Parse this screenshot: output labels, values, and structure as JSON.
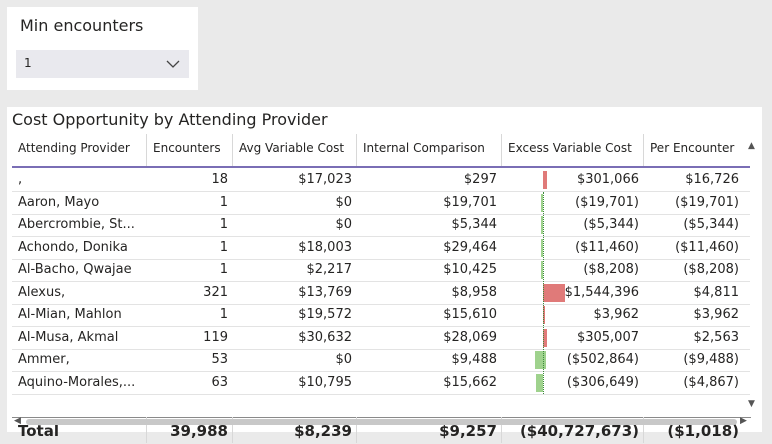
{
  "slicer": {
    "title": "Min encounters",
    "value": "1"
  },
  "visual": {
    "title": "Cost Opportunity by Attending Provider",
    "columns": [
      "Attending Provider",
      "Encounters",
      "Avg Variable Cost",
      "Internal Comparison",
      "Excess Variable Cost",
      "Per Encounter"
    ],
    "rows": [
      {
        "name": ",",
        "enc": "18",
        "avg": "$17,023",
        "internal": "$297",
        "excess": "$301,066",
        "per": "$16,726",
        "bar": 301066
      },
      {
        "name": "Aaron, Mayo",
        "enc": "1",
        "avg": "$0",
        "internal": "$19,701",
        "excess": "($19,701)",
        "per": "($19,701)",
        "bar": -19701
      },
      {
        "name": "Abercrombie, St...",
        "enc": "1",
        "avg": "$0",
        "internal": "$5,344",
        "excess": "($5,344)",
        "per": "($5,344)",
        "bar": -5344
      },
      {
        "name": "Achondo, Donika",
        "enc": "1",
        "avg": "$18,003",
        "internal": "$29,464",
        "excess": "($11,460)",
        "per": "($11,460)",
        "bar": -11460
      },
      {
        "name": "Al-Bacho, Qwajae",
        "enc": "1",
        "avg": "$2,217",
        "internal": "$10,425",
        "excess": "($8,208)",
        "per": "($8,208)",
        "bar": -8208
      },
      {
        "name": "Alexus,",
        "enc": "321",
        "avg": "$13,769",
        "internal": "$8,958",
        "excess": "$1,544,396",
        "per": "$4,811",
        "bar": 1544396
      },
      {
        "name": "Al-Mian, Mahlon",
        "enc": "1",
        "avg": "$19,572",
        "internal": "$15,610",
        "excess": "$3,962",
        "per": "$3,962",
        "bar": 3962
      },
      {
        "name": "Al-Musa, Akmal",
        "enc": "119",
        "avg": "$30,632",
        "internal": "$28,069",
        "excess": "$305,007",
        "per": "$2,563",
        "bar": 305007
      },
      {
        "name": "Ammer,",
        "enc": "53",
        "avg": "$0",
        "internal": "$9,488",
        "excess": "($502,864)",
        "per": "($9,488)",
        "bar": -502864
      },
      {
        "name": "Aquino-Morales,...",
        "enc": "63",
        "avg": "$10,795",
        "internal": "$15,662",
        "excess": "($306,649)",
        "per": "($4,867)",
        "bar": -306649
      }
    ],
    "totals": {
      "label": "Total",
      "enc": "39,988",
      "avg": "$8,239",
      "internal": "$9,257",
      "excess": "($40,727,673)",
      "per": "($1,018)"
    }
  },
  "colors": {
    "positive_bar": "#e07a79",
    "negative_bar": "#9fd28d",
    "header_underline": "#7a6eb5"
  }
}
